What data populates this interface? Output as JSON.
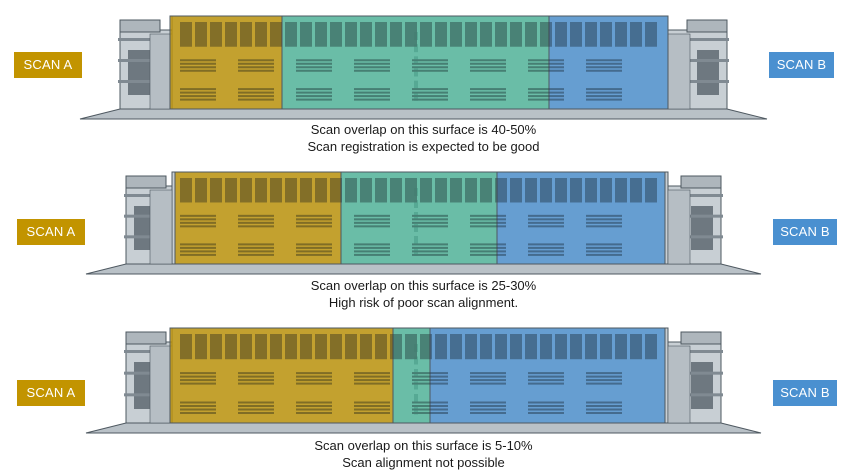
{
  "colors": {
    "scan_a": "#C29400",
    "scan_b": "#4A90D0",
    "overlap": "#4FB79A",
    "building_base": "#C8CFD4",
    "building_line": "#4E5860"
  },
  "panels": [
    {
      "label_a": "SCAN A",
      "label_b": "SCAN B",
      "caption_line1": "Scan overlap on this surface is 40-50%",
      "caption_line2": "Scan registration is expected to be good",
      "overlap_percent": "40-50%"
    },
    {
      "label_a": "SCAN A",
      "label_b": "SCAN B",
      "caption_line1": "Scan overlap on this surface is 25-30%",
      "caption_line2": "High risk of poor scan alignment.",
      "overlap_percent": "25-30%"
    },
    {
      "label_a": "SCAN A",
      "label_b": "SCAN B",
      "caption_line1": "Scan overlap on this surface is 5-10%",
      "caption_line2": "Scan alignment not possible",
      "overlap_percent": "5-10%"
    }
  ]
}
